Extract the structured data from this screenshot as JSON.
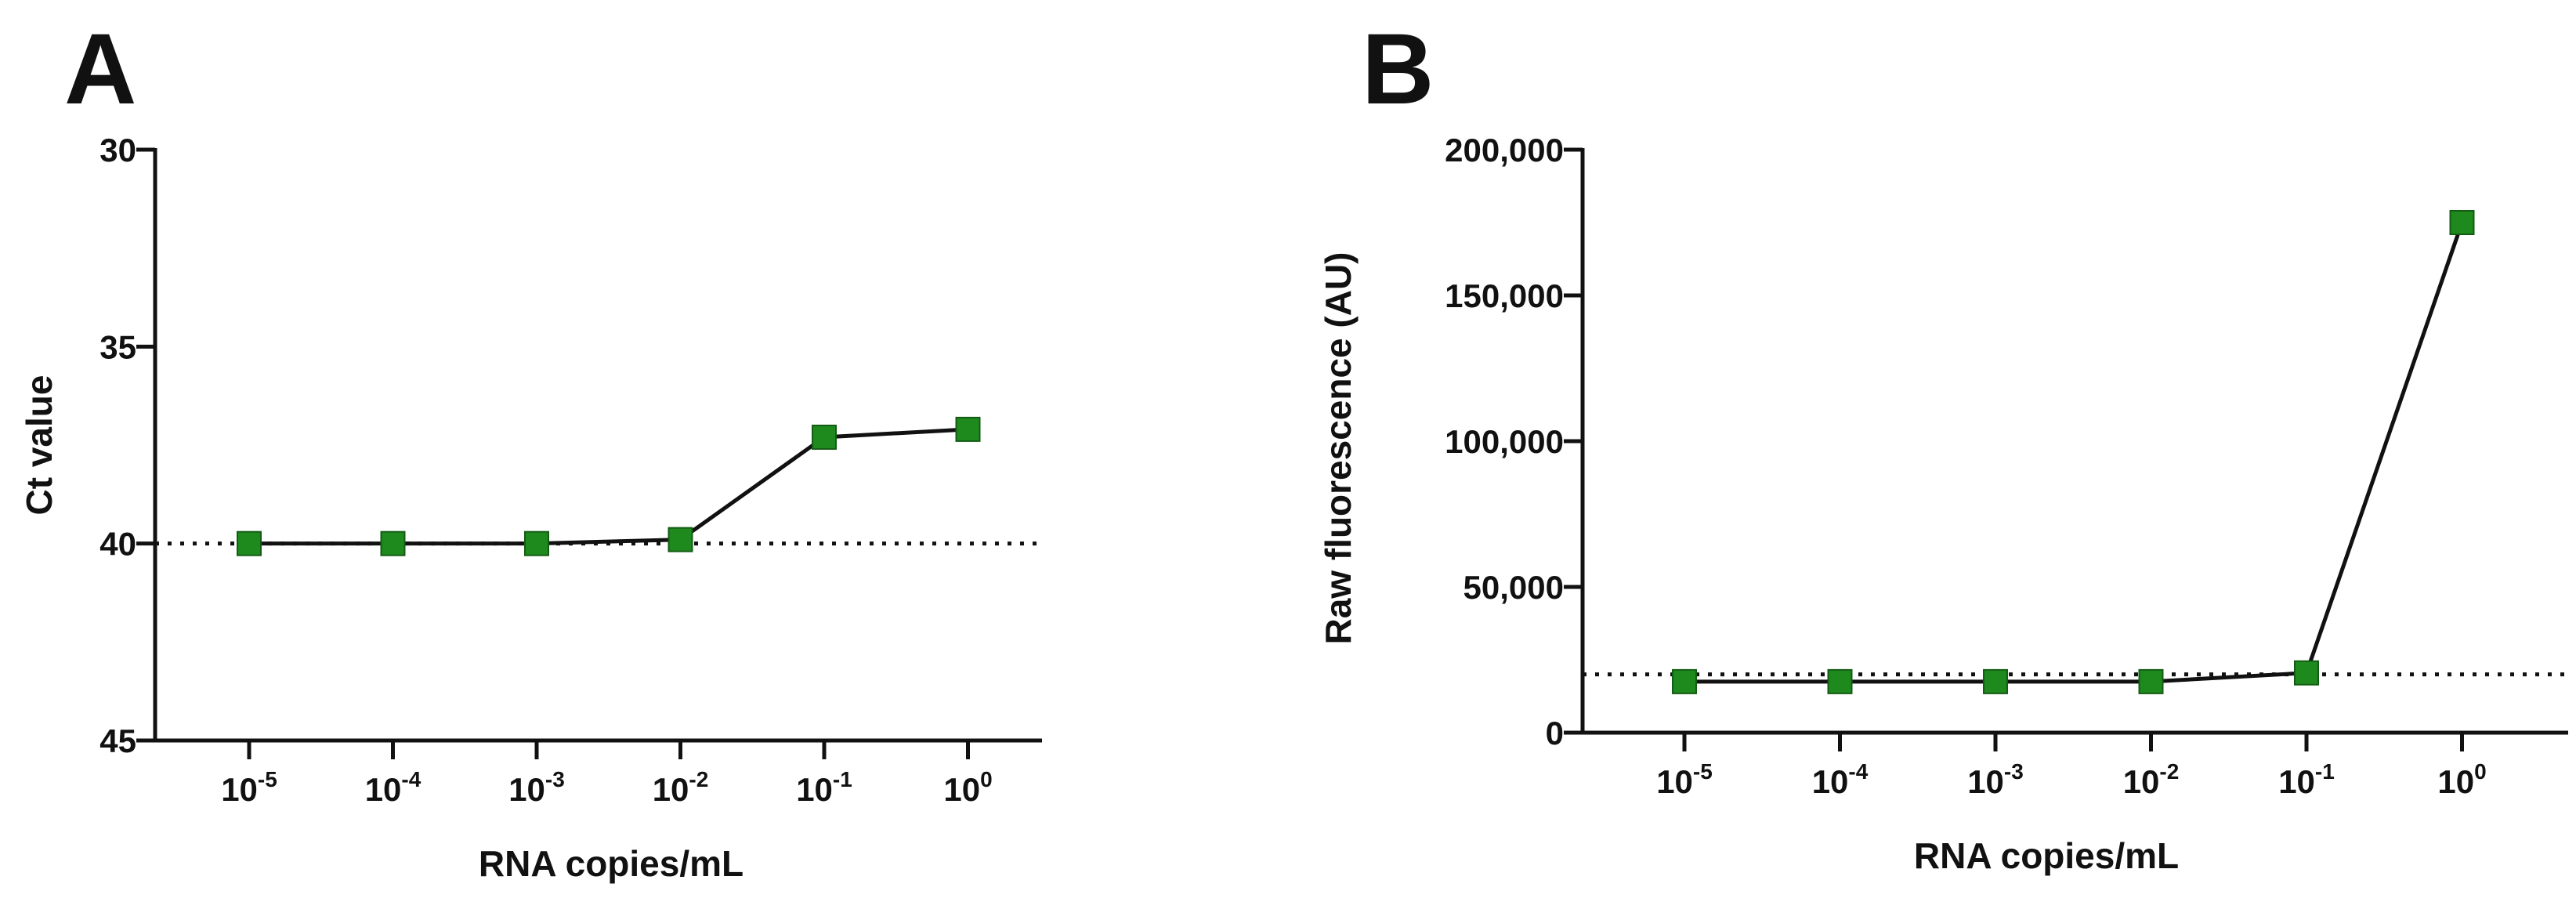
{
  "chart_data": [
    {
      "type": "line",
      "panel": "A",
      "title": "",
      "xlabel": "RNA copies/mL",
      "ylabel": "Ct value",
      "x_categories": [
        {
          "base": "10",
          "exp": "-5"
        },
        {
          "base": "10",
          "exp": "-4"
        },
        {
          "base": "10",
          "exp": "-3"
        },
        {
          "base": "10",
          "exp": "-2"
        },
        {
          "base": "10",
          "exp": "-1"
        },
        {
          "base": "10",
          "exp": "0"
        }
      ],
      "y_inverted": true,
      "ylim": [
        30,
        45
      ],
      "yticks": [
        30,
        35,
        40,
        45
      ],
      "ytick_labels": [
        "30",
        "35",
        "40",
        "45"
      ],
      "series": [
        {
          "name": "Ct",
          "color": "#1e8a1e",
          "marker": "square",
          "values": [
            40.0,
            40.0,
            40.0,
            39.9,
            37.3,
            37.1
          ]
        }
      ],
      "reference_line": {
        "y": 40,
        "style": "dotted"
      }
    },
    {
      "type": "line",
      "panel": "B",
      "title": "",
      "xlabel": "RNA copies/mL",
      "ylabel": "Raw fluorescence (AU)",
      "x_categories": [
        {
          "base": "10",
          "exp": "-5"
        },
        {
          "base": "10",
          "exp": "-4"
        },
        {
          "base": "10",
          "exp": "-3"
        },
        {
          "base": "10",
          "exp": "-2"
        },
        {
          "base": "10",
          "exp": "-1"
        },
        {
          "base": "10",
          "exp": "0"
        }
      ],
      "y_inverted": false,
      "ylim": [
        0,
        200000
      ],
      "yticks": [
        0,
        50000,
        100000,
        150000,
        200000
      ],
      "ytick_labels": [
        "0",
        "50,000",
        "100,000",
        "150,000",
        "200,000"
      ],
      "series": [
        {
          "name": "Fluorescence",
          "color": "#1e8a1e",
          "marker": "square",
          "values": [
            17500,
            17500,
            17500,
            17500,
            20500,
            175000
          ]
        }
      ],
      "reference_line": {
        "y": 20000,
        "style": "dotted"
      }
    }
  ]
}
